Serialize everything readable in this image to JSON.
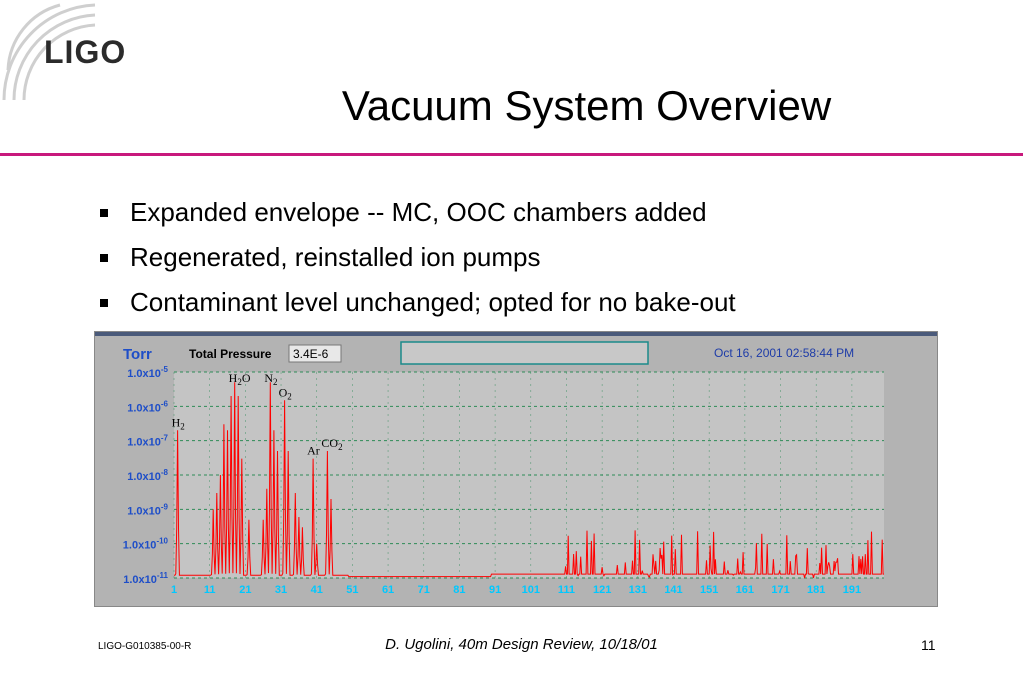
{
  "logo": {
    "text": "LIGO"
  },
  "slide": {
    "title": "Vacuum System Overview",
    "bullets": [
      "Expanded envelope -- MC, OOC chambers added",
      "Regenerated, reinstalled ion pumps",
      "Contaminant level unchanged; opted for no bake-out"
    ]
  },
  "chart_data": {
    "type": "line",
    "header": {
      "unit_label": "Torr",
      "total_pressure_label": "Total Pressure",
      "total_pressure_value": "3.4E-6",
      "timestamp": "Oct 16, 2001  02:58:44 PM"
    },
    "y_scale": "log",
    "ylim": [
      1e-11,
      1e-05
    ],
    "ytick_labels": [
      {
        "mantissa": "1.0x10",
        "exp": "-5"
      },
      {
        "mantissa": "1.0x10",
        "exp": "-6"
      },
      {
        "mantissa": "1.0x10",
        "exp": "-7"
      },
      {
        "mantissa": "1.0x10",
        "exp": "-8"
      },
      {
        "mantissa": "1.0x10",
        "exp": "-9"
      },
      {
        "mantissa": "1.0x10",
        "exp": "-10"
      },
      {
        "mantissa": "1.0x10",
        "exp": "-11"
      }
    ],
    "xlim": [
      1,
      200
    ],
    "xticks": [
      "1",
      "11",
      "21",
      "31",
      "41",
      "51",
      "61",
      "71",
      "81",
      "91",
      "101",
      "111",
      "121",
      "131",
      "141",
      "151",
      "161",
      "171",
      "181",
      "191"
    ],
    "grid": true,
    "series": [
      {
        "color": "#ff0000",
        "peaks": [
          {
            "x": 2,
            "y": 2e-07
          },
          {
            "x": 12,
            "y": 1e-09
          },
          {
            "x": 13,
            "y": 3e-09
          },
          {
            "x": 14,
            "y": 1e-08
          },
          {
            "x": 15,
            "y": 3e-07
          },
          {
            "x": 16,
            "y": 2e-07
          },
          {
            "x": 17,
            "y": 2e-06
          },
          {
            "x": 18,
            "y": 5e-06
          },
          {
            "x": 19,
            "y": 2e-06
          },
          {
            "x": 20,
            "y": 3e-08
          },
          {
            "x": 22,
            "y": 5e-10
          },
          {
            "x": 26,
            "y": 5e-10
          },
          {
            "x": 27,
            "y": 4e-09
          },
          {
            "x": 28,
            "y": 5e-06
          },
          {
            "x": 29,
            "y": 2e-07
          },
          {
            "x": 30,
            "y": 5e-08
          },
          {
            "x": 32,
            "y": 1.5e-06
          },
          {
            "x": 33,
            "y": 5e-08
          },
          {
            "x": 35,
            "y": 3e-09
          },
          {
            "x": 36,
            "y": 6e-10
          },
          {
            "x": 37,
            "y": 3e-10
          },
          {
            "x": 40,
            "y": 3e-08
          },
          {
            "x": 41,
            "y": 1e-10
          },
          {
            "x": 44,
            "y": 5e-08
          },
          {
            "x": 45,
            "y": 2e-09
          }
        ]
      }
    ],
    "annotations": [
      {
        "label": "H",
        "sub": "2",
        "tail": "",
        "x": 2
      },
      {
        "label": "H",
        "sub": "2",
        "tail": "O",
        "x": 18
      },
      {
        "label": "N",
        "sub": "2",
        "tail": "",
        "x": 28
      },
      {
        "label": "O",
        "sub": "2",
        "tail": "",
        "x": 32
      },
      {
        "label": "Ar",
        "sub": "",
        "tail": "",
        "x": 40
      },
      {
        "label": "CO",
        "sub": "2",
        "tail": "",
        "x": 44
      }
    ]
  },
  "footer": {
    "doc_id": "LIGO-G010385-00-R",
    "center": "D. Ugolini, 40m Design Review, 10/18/01",
    "page": "11"
  },
  "colors": {
    "accent_rule": "#c8187c",
    "chart_bg": "#c0c0c0",
    "grid": "#2e8b57",
    "tick_label": "#00c8ff",
    "trace": "#ff0000"
  }
}
